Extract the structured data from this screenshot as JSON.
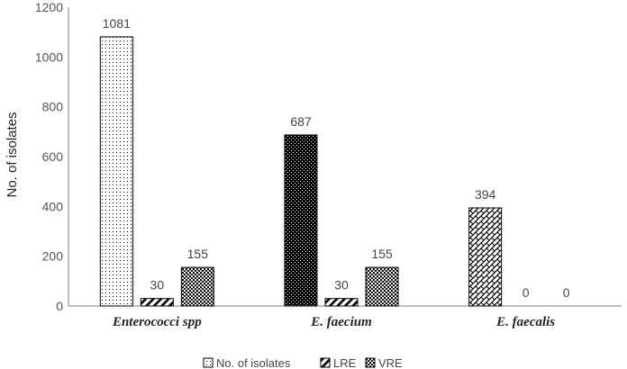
{
  "chart_data": {
    "type": "bar",
    "categories": [
      "Enterococci spp",
      "E. faecium",
      "E. faecalis"
    ],
    "series": [
      {
        "name": "No. of isolates",
        "values": [
          1081,
          687,
          394
        ]
      },
      {
        "name": "LRE",
        "values": [
          30,
          30,
          0
        ]
      },
      {
        "name": "VRE",
        "values": [
          155,
          155,
          0
        ]
      }
    ],
    "data_labels": [
      [
        "1081",
        "30",
        "155"
      ],
      [
        "687",
        "30",
        "155"
      ],
      [
        "394",
        "0",
        "0"
      ]
    ],
    "ylabel": "No. of isolates",
    "xlabel": "",
    "ylim": [
      0,
      1200
    ],
    "yticks": [
      "0",
      "200",
      "400",
      "600",
      "800",
      "1000",
      "1200"
    ],
    "grid": false,
    "legend_position": "bottom",
    "bar_colors": {
      "fill": "#ffffff",
      "pattern": "#000000",
      "outline": "#000000"
    }
  }
}
